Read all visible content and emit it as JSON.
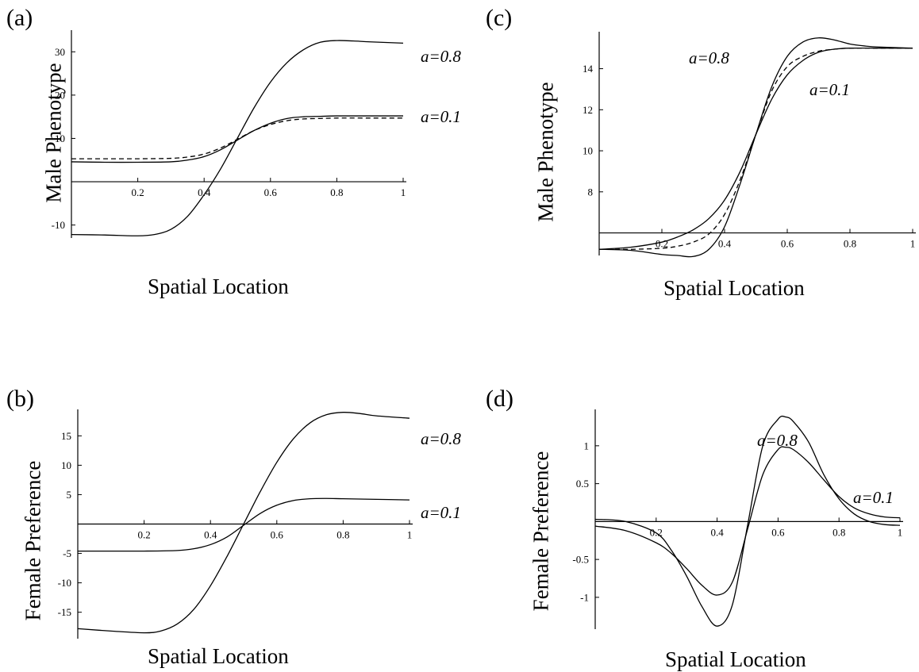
{
  "chart_data": [
    {
      "id": "a",
      "panel_label": "(a)",
      "type": "line",
      "xlabel": "Spatial Location",
      "ylabel": "Male Phenotype",
      "xlim": [
        0,
        1
      ],
      "ylim": [
        -13,
        35
      ],
      "xticks": [
        0.2,
        0.4,
        0.6,
        0.8,
        1
      ],
      "xtick_labels": [
        "0.2",
        "0.4",
        "0.6",
        "0.8",
        "1"
      ],
      "yticks": [
        -10,
        10,
        20,
        30
      ],
      "ytick_labels": [
        "-10",
        "10",
        "20",
        "30"
      ],
      "series": [
        {
          "name": "a=0.8",
          "style": "solid",
          "x": [
            0,
            0.1,
            0.2,
            0.25,
            0.3,
            0.35,
            0.4,
            0.45,
            0.5,
            0.55,
            0.6,
            0.65,
            0.7,
            0.75,
            0.8,
            0.85,
            0.9,
            1
          ],
          "y": [
            -12.2,
            -12.3,
            -12.5,
            -12.2,
            -11,
            -8,
            -3,
            3,
            10,
            17,
            23,
            27.5,
            30.5,
            32.2,
            32.6,
            32.5,
            32.3,
            32
          ]
        },
        {
          "name": "a=0.1",
          "style": "solid",
          "x": [
            0,
            0.1,
            0.2,
            0.3,
            0.35,
            0.4,
            0.45,
            0.5,
            0.55,
            0.6,
            0.65,
            0.7,
            0.75,
            0.8,
            0.9,
            1
          ],
          "y": [
            4.6,
            4.5,
            4.5,
            4.6,
            5.0,
            5.8,
            7.4,
            9.6,
            11.8,
            13.5,
            14.6,
            15.0,
            15.1,
            15.2,
            15.2,
            15.2
          ]
        },
        {
          "name": "",
          "style": "dashed",
          "x": [
            0,
            0.1,
            0.2,
            0.3,
            0.35,
            0.4,
            0.45,
            0.5,
            0.55,
            0.6,
            0.65,
            0.7,
            0.75,
            0.8,
            0.9,
            1
          ],
          "y": [
            5.3,
            5.3,
            5.3,
            5.4,
            5.7,
            6.4,
            7.8,
            9.8,
            11.8,
            13.2,
            14.1,
            14.5,
            14.6,
            14.7,
            14.7,
            14.7
          ]
        }
      ],
      "annotations": [
        {
          "text": "a=0.8",
          "series": "a=0.8"
        },
        {
          "text": "a=0.1",
          "series": "a=0.1"
        }
      ]
    },
    {
      "id": "b",
      "panel_label": "(b)",
      "type": "line",
      "xlabel": "Spatial Location",
      "ylabel": "Female Preference",
      "xlim": [
        0,
        1
      ],
      "ylim": [
        -19.5,
        19.5
      ],
      "xticks": [
        0.2,
        0.4,
        0.6,
        0.8,
        1
      ],
      "xtick_labels": [
        "0.2",
        "0.4",
        "0.6",
        "0.8",
        "1"
      ],
      "yticks": [
        -15,
        -10,
        -5,
        5,
        10,
        15
      ],
      "ytick_labels": [
        "-15",
        "-10",
        "-5",
        "5",
        "10",
        "15"
      ],
      "series": [
        {
          "name": "a=0.8",
          "style": "solid",
          "x": [
            0,
            0.1,
            0.2,
            0.25,
            0.3,
            0.35,
            0.4,
            0.45,
            0.5,
            0.55,
            0.6,
            0.65,
            0.7,
            0.75,
            0.8,
            0.85,
            0.9,
            1
          ],
          "y": [
            -17.8,
            -18.2,
            -18.5,
            -18.2,
            -17,
            -14.5,
            -10.5,
            -5.5,
            0,
            5.5,
            10.5,
            14.5,
            17.2,
            18.6,
            19,
            18.8,
            18.4,
            18
          ]
        },
        {
          "name": "a=0.1",
          "style": "solid",
          "x": [
            0,
            0.1,
            0.2,
            0.3,
            0.35,
            0.4,
            0.45,
            0.5,
            0.55,
            0.6,
            0.65,
            0.7,
            0.75,
            0.8,
            0.9,
            1
          ],
          "y": [
            -4.6,
            -4.6,
            -4.6,
            -4.5,
            -4.2,
            -3.5,
            -2.2,
            -0.2,
            1.8,
            3.2,
            4.0,
            4.3,
            4.35,
            4.3,
            4.2,
            4.1
          ]
        }
      ],
      "annotations": [
        {
          "text": "a=0.8",
          "series": "a=0.8"
        },
        {
          "text": "a=0.1",
          "series": "a=0.1"
        }
      ]
    },
    {
      "id": "c",
      "panel_label": "(c)",
      "type": "line",
      "xlabel": "Spatial Location",
      "ylabel": "Male Phenotype",
      "xlim": [
        0,
        1
      ],
      "ylim": [
        4.9,
        15.8
      ],
      "x_axis_at": 6,
      "xticks": [
        0.2,
        0.4,
        0.6,
        0.8,
        1
      ],
      "xtick_labels": [
        "0.2",
        "0.4",
        "0.6",
        "0.8",
        "1"
      ],
      "yticks": [
        8,
        10,
        12,
        14
      ],
      "ytick_labels": [
        "8",
        "10",
        "12",
        "14"
      ],
      "series": [
        {
          "name": "a=0.8",
          "style": "solid",
          "x": [
            0,
            0.1,
            0.2,
            0.25,
            0.3,
            0.35,
            0.4,
            0.45,
            0.5,
            0.55,
            0.6,
            0.65,
            0.7,
            0.75,
            0.8,
            0.85,
            0.9,
            1
          ],
          "y": [
            5.2,
            5.15,
            4.95,
            4.9,
            4.85,
            5.2,
            6.3,
            8.4,
            10.8,
            13.1,
            14.6,
            15.3,
            15.5,
            15.4,
            15.2,
            15.1,
            15.05,
            15
          ]
        },
        {
          "name": "a=0.1",
          "style": "solid",
          "x": [
            0,
            0.1,
            0.2,
            0.25,
            0.3,
            0.35,
            0.4,
            0.45,
            0.5,
            0.55,
            0.6,
            0.65,
            0.7,
            0.75,
            0.8,
            0.9,
            1
          ],
          "y": [
            5.2,
            5.3,
            5.55,
            5.8,
            6.15,
            6.7,
            7.6,
            9.0,
            10.8,
            12.5,
            13.7,
            14.4,
            14.8,
            14.95,
            15.0,
            15.0,
            15
          ]
        },
        {
          "name": "",
          "style": "dashed",
          "x": [
            0,
            0.1,
            0.2,
            0.25,
            0.3,
            0.35,
            0.4,
            0.45,
            0.5,
            0.55,
            0.6,
            0.65,
            0.7,
            0.75,
            0.8,
            0.9,
            1
          ],
          "y": [
            5.2,
            5.2,
            5.25,
            5.35,
            5.55,
            5.95,
            6.9,
            8.6,
            10.8,
            12.9,
            14.1,
            14.6,
            14.85,
            14.95,
            15.0,
            15.0,
            15
          ]
        }
      ],
      "annotations": [
        {
          "text": "a=0.8",
          "series": "a=0.8"
        },
        {
          "text": "a=0.1",
          "series": "a=0.1"
        }
      ]
    },
    {
      "id": "d",
      "panel_label": "(d)",
      "type": "line",
      "xlabel": "Spatial Location",
      "ylabel": "Female Preference",
      "xlim": [
        0,
        1
      ],
      "ylim": [
        -1.42,
        1.48
      ],
      "xticks": [
        0.2,
        0.4,
        0.6,
        0.8,
        1
      ],
      "xtick_labels": [
        "0.2",
        "0.4",
        "0.6",
        "0.8",
        "1"
      ],
      "yticks": [
        -1,
        -0.5,
        0.5,
        1
      ],
      "ytick_labels": [
        "-1",
        "-0.5",
        "0.5",
        "1"
      ],
      "series": [
        {
          "name": "a=0.8",
          "style": "solid",
          "x": [
            0,
            0.1,
            0.2,
            0.25,
            0.3,
            0.35,
            0.4,
            0.45,
            0.5,
            0.55,
            0.6,
            0.625,
            0.65,
            0.7,
            0.75,
            0.8,
            0.85,
            0.9,
            0.95,
            1
          ],
          "y": [
            0.03,
            0.0,
            -0.15,
            -0.38,
            -0.72,
            -1.12,
            -1.38,
            -1.1,
            -0.05,
            1.0,
            1.35,
            1.38,
            1.32,
            1.05,
            0.62,
            0.3,
            0.1,
            0.0,
            -0.04,
            -0.05
          ]
        },
        {
          "name": "a=0.1",
          "style": "solid",
          "x": [
            0,
            0.1,
            0.2,
            0.25,
            0.3,
            0.35,
            0.4,
            0.45,
            0.5,
            0.55,
            0.6,
            0.625,
            0.65,
            0.7,
            0.75,
            0.8,
            0.85,
            0.9,
            0.95,
            1
          ],
          "y": [
            -0.06,
            -0.12,
            -0.28,
            -0.42,
            -0.62,
            -0.84,
            -0.97,
            -0.8,
            -0.1,
            0.62,
            0.95,
            0.98,
            0.95,
            0.78,
            0.55,
            0.33,
            0.18,
            0.1,
            0.06,
            0.05
          ]
        }
      ],
      "annotations": [
        {
          "text": "a=0.8",
          "series": "a=0.8"
        },
        {
          "text": "a=0.1",
          "series": "a=0.1"
        }
      ]
    }
  ]
}
